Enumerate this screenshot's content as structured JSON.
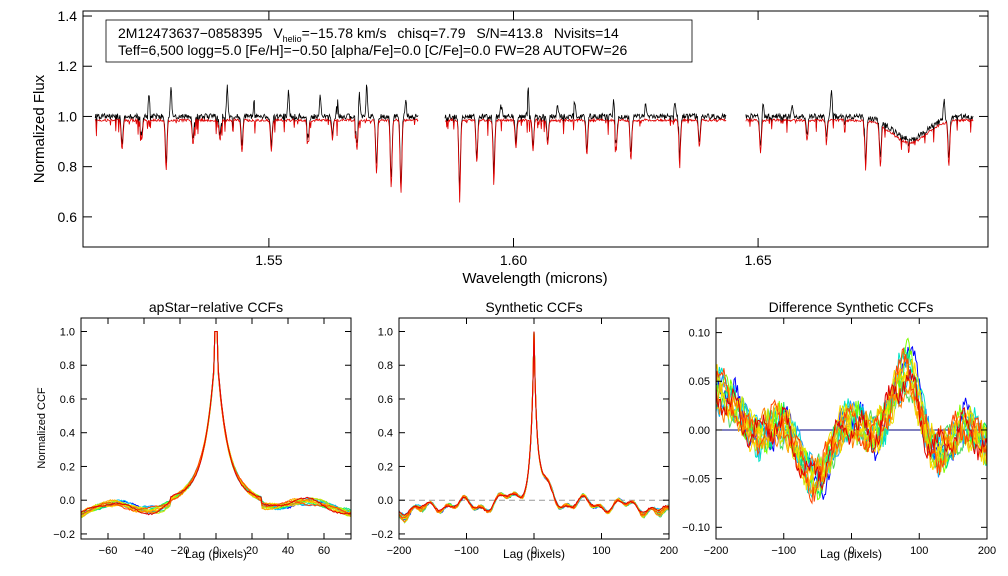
{
  "info_box": {
    "star_id": "2M12473637−0858395",
    "vhelio_prefix": "V",
    "vhelio_sub": "helio",
    "vhelio_value": "=−15.78 km/s",
    "chisq": "chisq=7.79",
    "snr": "S/N=413.8",
    "nvisits": "Nvisits=14",
    "params": "Teff=6,500 logg=5.0 [Fe/H]=−0.50 [alpha/Fe]=0.0 [C/Fe]=0.0 FW=28 AUTOFW=26"
  },
  "colors": {
    "observed": "#000000",
    "model": "#e00000",
    "zero_line": "#000080",
    "dashed_line": "#999999",
    "visit_palette": [
      "#0000ff",
      "#1e90ff",
      "#00bfff",
      "#00e5c8",
      "#00e676",
      "#4cd964",
      "#7fff00",
      "#c8e600",
      "#e6e600",
      "#ffd700",
      "#ffa500",
      "#ff7f00",
      "#ff4500",
      "#e00000"
    ]
  },
  "chart_data": [
    {
      "id": "spectrum",
      "type": "line",
      "title": "",
      "xlabel": "Wavelength (microns)",
      "ylabel": "Normalized Flux",
      "xlim": [
        1.512,
        1.697
      ],
      "ylim": [
        0.48,
        1.42
      ],
      "xticks": [
        1.55,
        1.6,
        1.65
      ],
      "xtick_labels": [
        "1.55",
        "1.60",
        "1.65"
      ],
      "yticks": [
        0.6,
        0.8,
        1.0,
        1.2,
        1.4
      ],
      "ytick_labels": [
        "0.6",
        "0.8",
        "1.0",
        "1.2",
        "1.4"
      ],
      "chips": [
        [
          1.5145,
          1.5805
        ],
        [
          1.586,
          1.6435
        ],
        [
          1.6475,
          1.694
        ]
      ],
      "series": [
        {
          "name": "observed",
          "baseline": 1.0
        },
        {
          "name": "model",
          "baseline": 0.985
        }
      ],
      "absorption_lines": [
        {
          "x": 1.52,
          "depth": 0.12
        },
        {
          "x": 1.524,
          "depth": 0.08
        },
        {
          "x": 1.529,
          "depth": 0.2
        },
        {
          "x": 1.5345,
          "depth": 0.1
        },
        {
          "x": 1.54,
          "depth": 0.08
        },
        {
          "x": 1.5445,
          "depth": 0.13
        },
        {
          "x": 1.5505,
          "depth": 0.12
        },
        {
          "x": 1.558,
          "depth": 0.09
        },
        {
          "x": 1.563,
          "depth": 0.07
        },
        {
          "x": 1.568,
          "depth": 0.12
        },
        {
          "x": 1.572,
          "depth": 0.21
        },
        {
          "x": 1.575,
          "depth": 0.27
        },
        {
          "x": 1.577,
          "depth": 0.29
        },
        {
          "x": 1.589,
          "depth": 0.3
        },
        {
          "x": 1.5925,
          "depth": 0.17
        },
        {
          "x": 1.596,
          "depth": 0.23
        },
        {
          "x": 1.6005,
          "depth": 0.11
        },
        {
          "x": 1.604,
          "depth": 0.12
        },
        {
          "x": 1.607,
          "depth": 0.1
        },
        {
          "x": 1.615,
          "depth": 0.14
        },
        {
          "x": 1.621,
          "depth": 0.12
        },
        {
          "x": 1.624,
          "depth": 0.16
        },
        {
          "x": 1.634,
          "depth": 0.14
        },
        {
          "x": 1.638,
          "depth": 0.11
        },
        {
          "x": 1.6505,
          "depth": 0.13
        },
        {
          "x": 1.66,
          "depth": 0.08
        },
        {
          "x": 1.664,
          "depth": 0.08
        },
        {
          "x": 1.672,
          "depth": 0.18
        },
        {
          "x": 1.675,
          "depth": 0.16
        },
        {
          "x": 1.689,
          "depth": 0.18
        }
      ],
      "emission_spikes": [
        {
          "x": 1.5255,
          "height": 0.1
        },
        {
          "x": 1.53,
          "height": 0.12
        },
        {
          "x": 1.5415,
          "height": 0.12
        },
        {
          "x": 1.547,
          "height": 0.07
        },
        {
          "x": 1.554,
          "height": 0.1
        },
        {
          "x": 1.5605,
          "height": 0.08
        },
        {
          "x": 1.564,
          "height": 0.07
        },
        {
          "x": 1.5685,
          "height": 0.11
        },
        {
          "x": 1.57,
          "height": 0.13
        },
        {
          "x": 1.578,
          "height": 0.06
        },
        {
          "x": 1.5975,
          "height": 0.07
        },
        {
          "x": 1.603,
          "height": 0.12
        },
        {
          "x": 1.609,
          "height": 0.05
        },
        {
          "x": 1.6125,
          "height": 0.06
        },
        {
          "x": 1.6205,
          "height": 0.07
        },
        {
          "x": 1.627,
          "height": 0.05
        },
        {
          "x": 1.633,
          "height": 0.06
        },
        {
          "x": 1.651,
          "height": 0.06
        },
        {
          "x": 1.657,
          "height": 0.05
        },
        {
          "x": 1.665,
          "height": 0.11
        },
        {
          "x": 1.688,
          "height": 0.08
        }
      ],
      "broad_feature": {
        "x": 1.681,
        "depth": 0.09,
        "width": 0.0035
      }
    },
    {
      "id": "apstar-ccf",
      "type": "line",
      "title": "apStar−relative CCFs",
      "xlabel": "Lag (pixels)",
      "ylabel": "Normalized CCF",
      "xlim": [
        -75,
        75
      ],
      "ylim": [
        -0.23,
        1.08
      ],
      "xticks": [
        -60,
        -40,
        -20,
        0,
        20,
        40,
        60
      ],
      "xtick_labels": [
        "−60",
        "−40",
        "−20",
        "0",
        "20",
        "40",
        "60"
      ],
      "yticks": [
        -0.2,
        0.0,
        0.2,
        0.4,
        0.6,
        0.8,
        1.0
      ],
      "ytick_labels": [
        "−0.2",
        "0.0",
        "0.2",
        "0.4",
        "0.6",
        "0.8",
        "1.0"
      ],
      "n_series": 14,
      "peak": {
        "x": 0,
        "y": 1.0
      }
    },
    {
      "id": "synthetic-ccf",
      "type": "line",
      "title": "Synthetic CCFs",
      "xlabel": "Lag (pixels)",
      "ylabel": "",
      "xlim": [
        -200,
        200
      ],
      "ylim": [
        -0.23,
        1.08
      ],
      "xticks": [
        -200,
        -100,
        0,
        100,
        200
      ],
      "xtick_labels": [
        "−200",
        "−100",
        "0",
        "100",
        "200"
      ],
      "yticks": [
        -0.2,
        0.0,
        0.2,
        0.4,
        0.6,
        0.8,
        1.0
      ],
      "ytick_labels": [
        "−0.2",
        "0.0",
        "0.2",
        "0.4",
        "0.6",
        "0.8",
        "1.0"
      ],
      "reference_line_y": 0.0,
      "n_series": 14,
      "peak": {
        "x": 0,
        "y": 1.0
      }
    },
    {
      "id": "difference-ccf",
      "type": "line",
      "title": "Difference Synthetic CCFs",
      "xlabel": "Lag (pixels)",
      "ylabel": "",
      "xlim": [
        -200,
        200
      ],
      "ylim": [
        -0.112,
        0.115
      ],
      "xticks": [
        -200,
        -100,
        0,
        100,
        200
      ],
      "xtick_labels": [
        "−200",
        "−100",
        "0",
        "100",
        "200"
      ],
      "yticks": [
        -0.1,
        -0.05,
        0.0,
        0.05,
        0.1
      ],
      "ytick_labels": [
        "−0.10",
        "−0.05",
        "0.00",
        "0.05",
        "0.10"
      ],
      "reference_line_y": 0.0,
      "n_series": 14
    }
  ]
}
